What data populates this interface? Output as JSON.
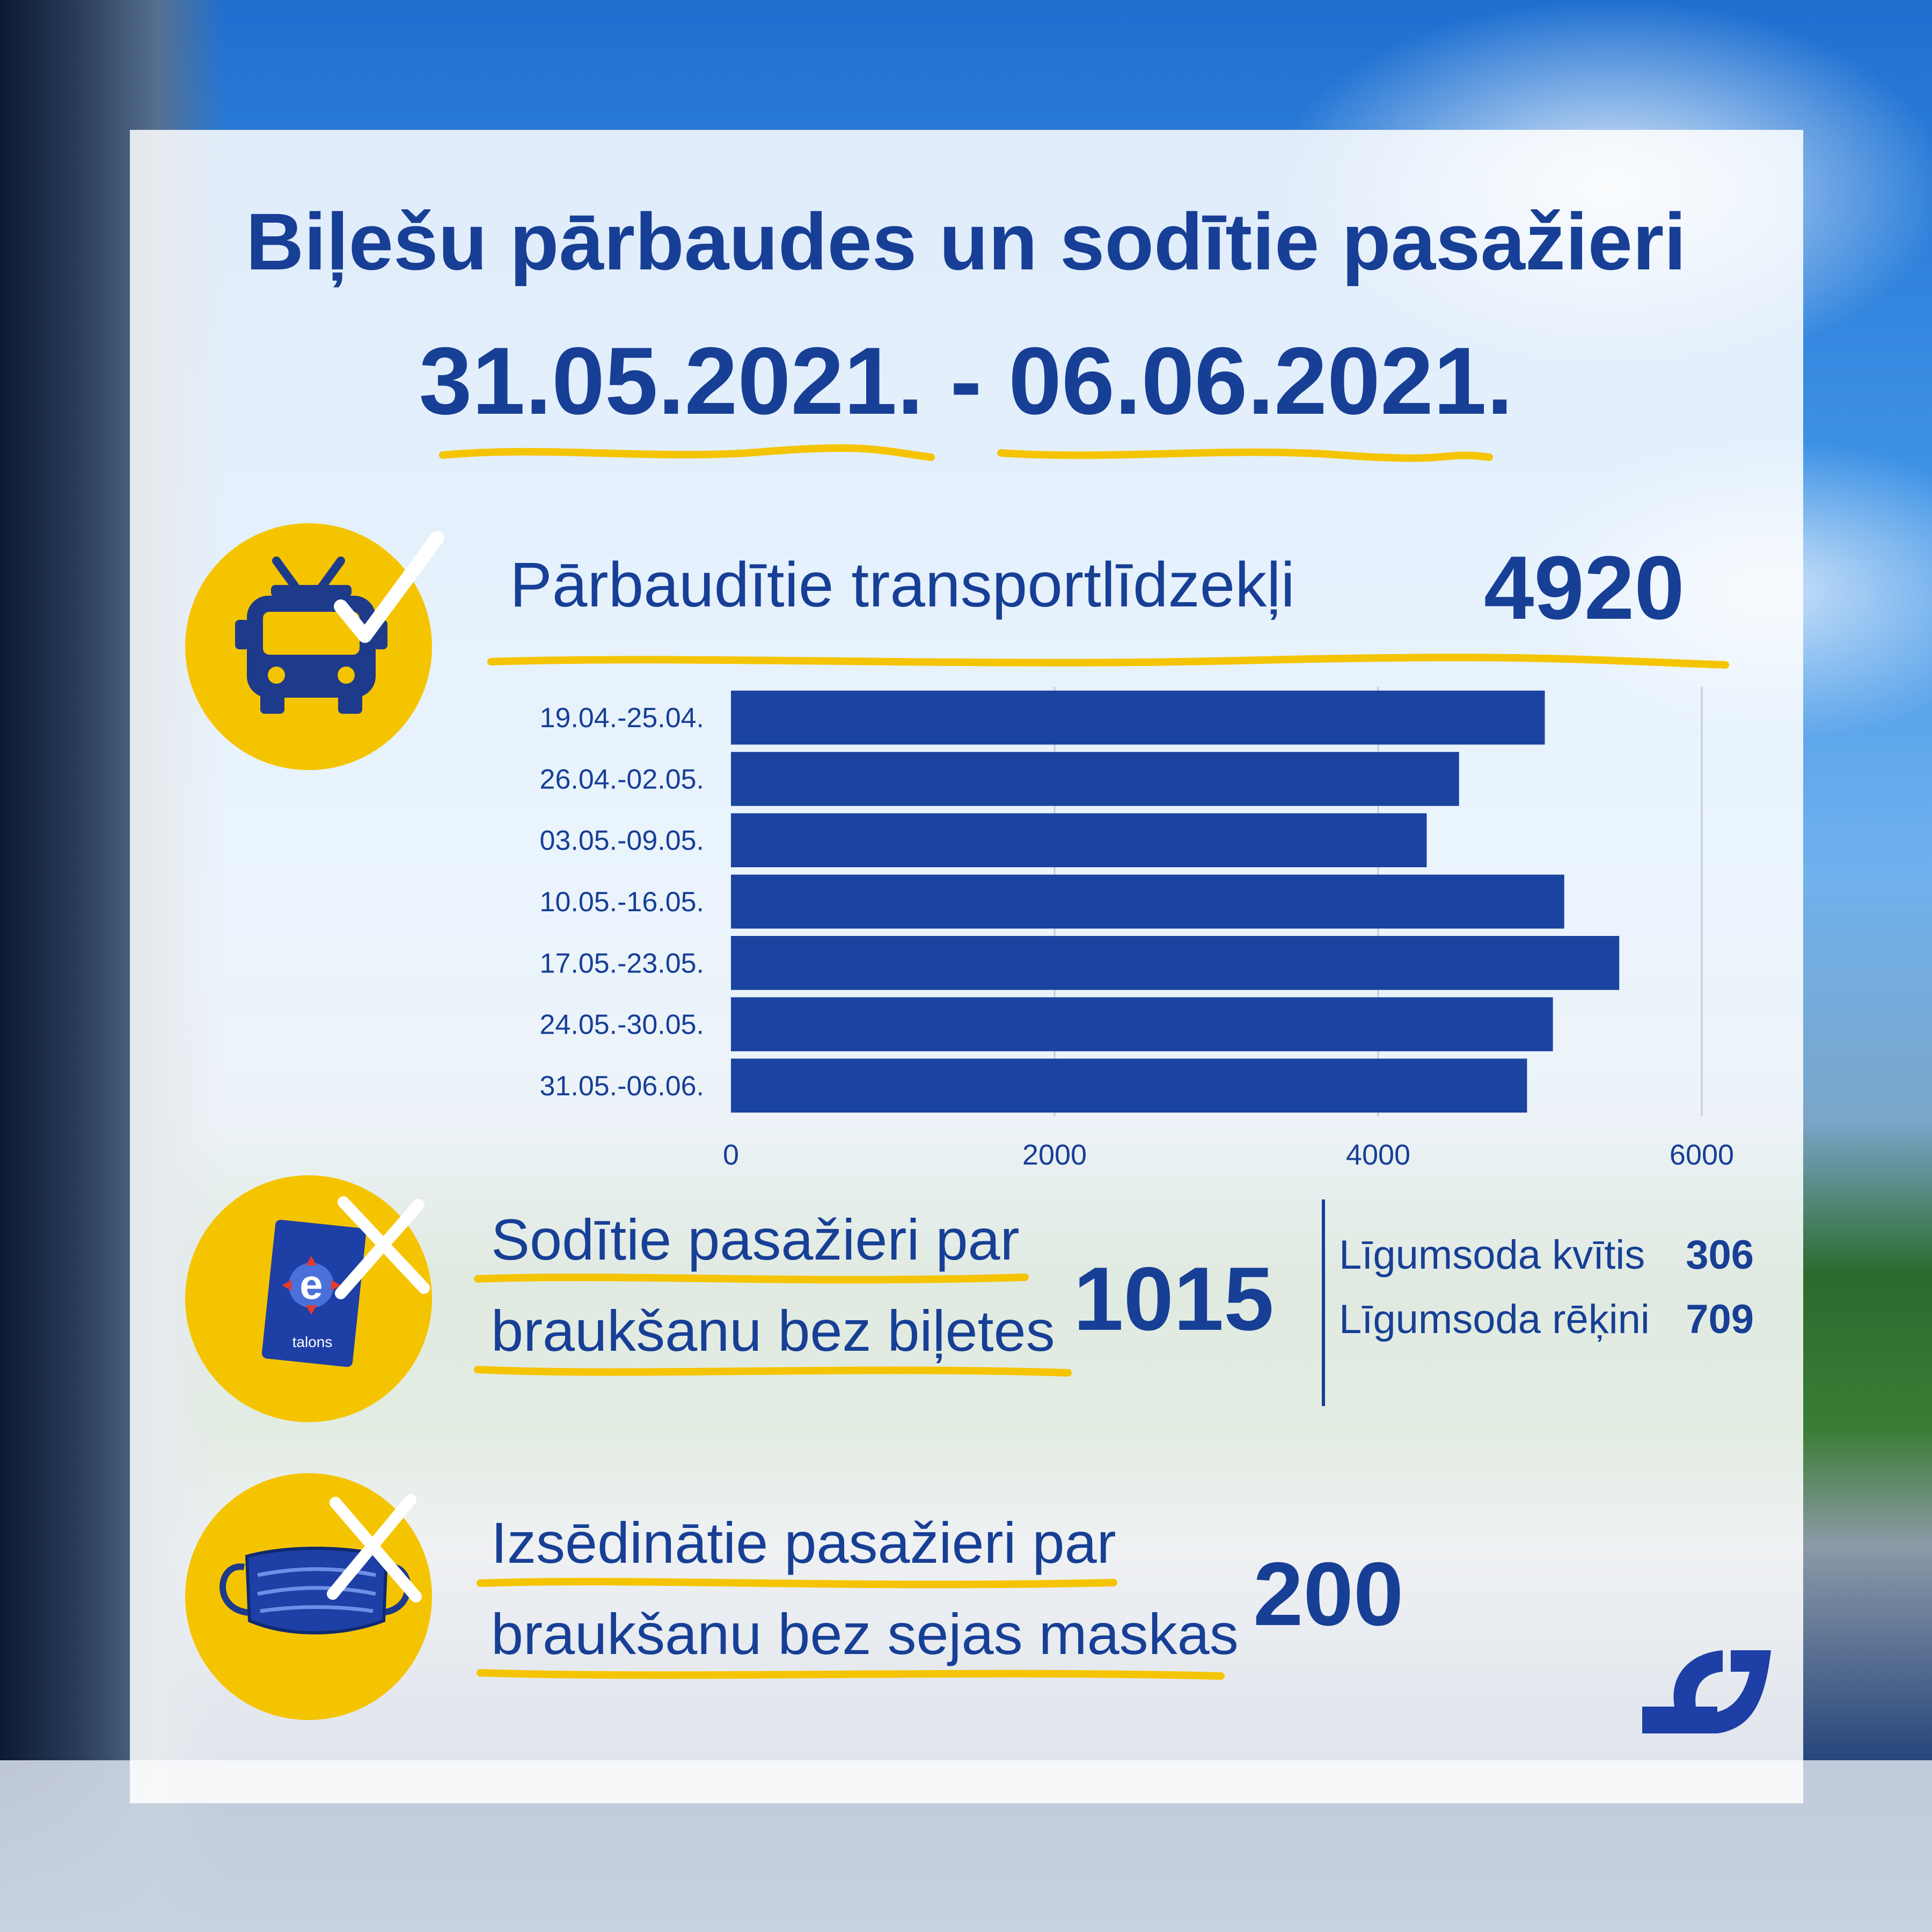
{
  "title": "Biļešu pārbaudes un sodītie pasažieri",
  "period": "31.05.2021. - 06.06.2021.",
  "colors": {
    "primary": "#173f96",
    "accent": "#f5c400",
    "bar": "#1a44a0"
  },
  "vehicles": {
    "label": "Pārbaudītie transportlīdzekļi",
    "value": "4920",
    "icon": "trolleybus-check-icon"
  },
  "fined": {
    "label_line1": "Sodītie pasažieri par",
    "label_line2": "braukšanu bez biļetes",
    "value": "1015",
    "icon": "etalons-card-x-icon",
    "card_text": "talons",
    "breakdown": [
      {
        "label": "Līgumsoda kvītis",
        "value": "306"
      },
      {
        "label": "Līgumsoda rēķini",
        "value": "709"
      }
    ]
  },
  "masks": {
    "label_line1": "Izsēdinātie pasažieri par",
    "label_line2": "braukšanu bez sejas maskas",
    "value": "200",
    "icon": "face-mask-x-icon"
  },
  "logo": "rigas-satiksme-logo",
  "chart_data": {
    "type": "bar",
    "orientation": "horizontal",
    "categories": [
      "19.04.-25.04.",
      "26.04.-02.05.",
      "03.05.-09.05.",
      "10.05.-16.05.",
      "17.05.-23.05.",
      "24.05.-30.05.",
      "31.05.-06.06."
    ],
    "values": [
      5030,
      4500,
      4300,
      5150,
      5490,
      5080,
      4920
    ],
    "xlim": [
      0,
      6000
    ],
    "xticks": [
      0,
      2000,
      4000,
      6000
    ],
    "grid": true
  }
}
